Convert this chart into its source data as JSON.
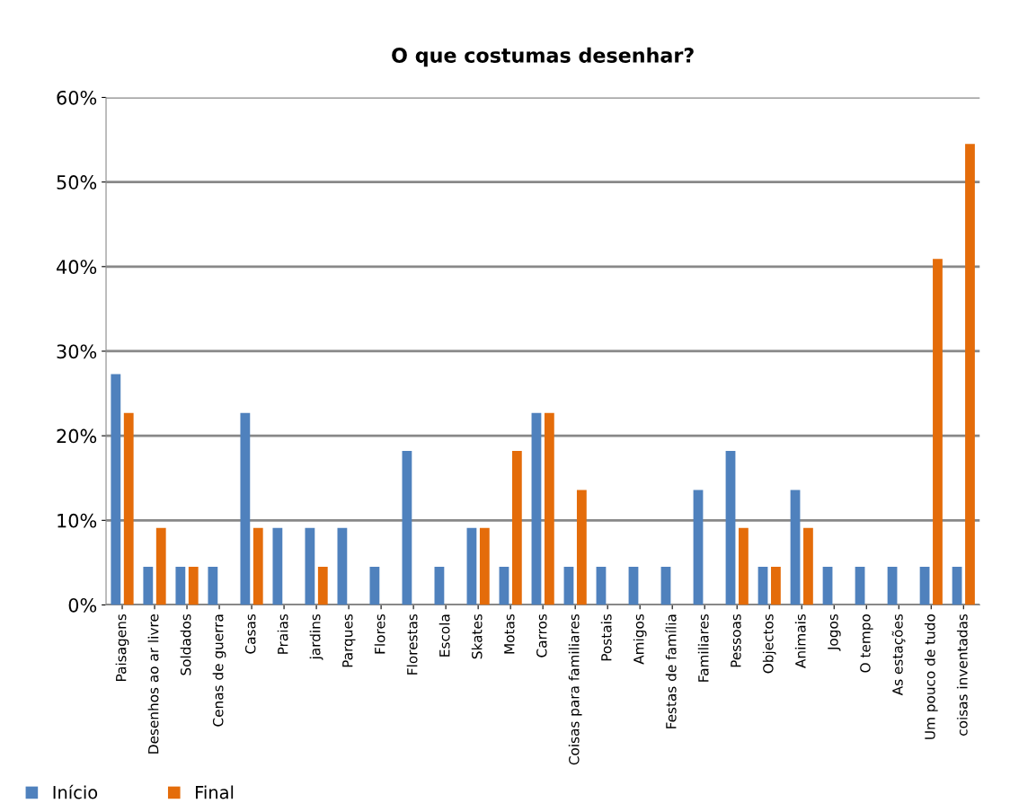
{
  "chart_data": {
    "type": "bar",
    "title": "O que costumas desenhar?",
    "categories": [
      "Paisagens",
      "Desenhos ao ar livre",
      "Soldados",
      "Cenas de guerra",
      "Casas",
      "Praias",
      "jardins",
      "Parques",
      "Flores",
      "Florestas",
      "Escola",
      "Skates",
      "Motas",
      "Carros",
      "Coisas para familiares",
      "Postais",
      "Amigos",
      "Festas de família",
      "Familiares",
      "Pessoas",
      "Objectos",
      "Animais",
      "Jogos",
      "O tempo",
      "As estações",
      "Um pouco de tudo",
      "coisas inventadas"
    ],
    "series": [
      {
        "name": "Início",
        "color": "#4f81bd",
        "values": [
          27.3,
          4.5,
          4.5,
          4.5,
          22.7,
          9.1,
          9.1,
          9.1,
          4.5,
          18.2,
          4.5,
          9.1,
          4.5,
          22.7,
          4.5,
          4.5,
          4.5,
          4.5,
          13.6,
          18.2,
          4.5,
          13.6,
          4.5,
          4.5,
          4.5,
          4.5,
          4.5
        ]
      },
      {
        "name": "Final",
        "color": "#e46c0a",
        "values": [
          22.7,
          9.1,
          4.5,
          0,
          9.1,
          0,
          4.5,
          0,
          0,
          0,
          0,
          9.1,
          18.2,
          22.7,
          13.6,
          0,
          0,
          0,
          0,
          9.1,
          4.5,
          9.1,
          0,
          0,
          0,
          40.9,
          54.5
        ]
      }
    ],
    "ylim": [
      0,
      60
    ],
    "yticks": [
      {
        "value": 0,
        "label": "0%"
      },
      {
        "value": 10,
        "label": "10%"
      },
      {
        "value": 20,
        "label": "20%"
      },
      {
        "value": 30,
        "label": "30%"
      },
      {
        "value": 40,
        "label": "40%"
      },
      {
        "value": 50,
        "label": "50%"
      },
      {
        "value": 60,
        "label": "60%"
      }
    ],
    "grid": "y",
    "legend": "bottom left"
  }
}
